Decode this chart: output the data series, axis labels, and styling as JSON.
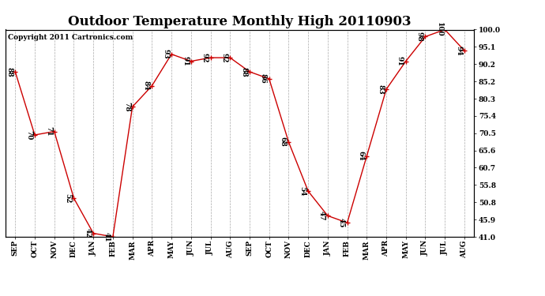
{
  "title": "Outdoor Temperature Monthly High 20110903",
  "copyright": "Copyright 2011 Cartronics.com",
  "x_labels": [
    "SEP",
    "OCT",
    "NOV",
    "DEC",
    "JAN",
    "FEB",
    "MAR",
    "APR",
    "MAY",
    "JUN",
    "JUL",
    "AUG",
    "SEP",
    "OCT",
    "NOV",
    "DEC",
    "JAN",
    "FEB",
    "MAR",
    "APR",
    "MAY",
    "JUN",
    "JUL",
    "AUG"
  ],
  "y_values": [
    88,
    70,
    71,
    52,
    42,
    41,
    78,
    84,
    93,
    91,
    92,
    92,
    88,
    86,
    68,
    54,
    47,
    45,
    64,
    83,
    91,
    98,
    100,
    94
  ],
  "y_right_ticks": [
    41.0,
    45.9,
    50.8,
    55.8,
    60.7,
    65.6,
    70.5,
    75.4,
    80.3,
    85.2,
    90.2,
    95.1,
    100.0
  ],
  "line_color": "#cc0000",
  "marker_color": "#cc0000",
  "background_color": "#ffffff",
  "grid_color": "#aaaaaa",
  "title_fontsize": 12,
  "label_fontsize": 6.5,
  "copyright_fontsize": 6.5,
  "data_label_fontsize": 6.5,
  "ylim_min": 41.0,
  "ylim_max": 100.0
}
